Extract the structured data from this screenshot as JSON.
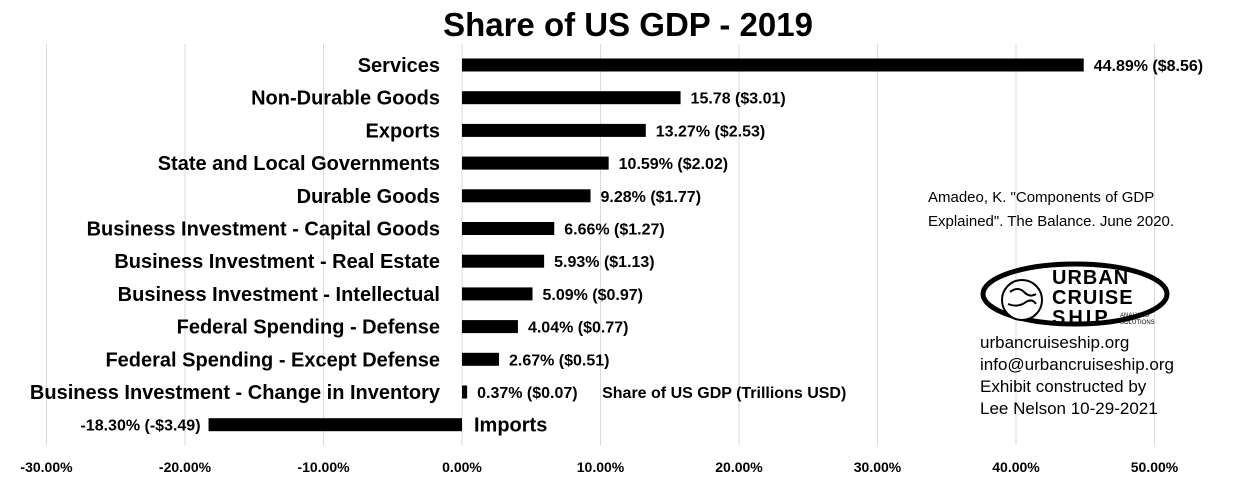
{
  "chart_data": {
    "type": "bar",
    "orientation": "horizontal",
    "title": "Share of US GDP - 2019",
    "series_name": "Share of US GDP (Trillions USD)",
    "categories": [
      "Services",
      "Non-Durable Goods",
      "Exports",
      "State and Local Governments",
      "Durable Goods",
      "Business Investment - Capital Goods",
      "Business Investment - Real Estate",
      "Business Investment - Intellectual",
      "Federal Spending - Defense",
      "Federal Spending - Except Defense",
      "Business Investment - Change in Inventory",
      "Imports"
    ],
    "values": [
      44.89,
      15.78,
      13.27,
      10.59,
      9.28,
      6.66,
      5.93,
      5.09,
      4.04,
      2.67,
      0.37,
      -18.3
    ],
    "data_labels": [
      "44.89% ($8.56)",
      "15.78 ($3.01)",
      "13.27% ($2.53)",
      "10.59% ($2.02)",
      "9.28% ($1.77)",
      "6.66% ($1.27)",
      "5.93% ($1.13)",
      "5.09% ($0.97)",
      "4.04% ($0.77)",
      "2.67% ($0.51)",
      "0.37% ($0.07)",
      "-18.30% (-$3.49)"
    ],
    "xlim": [
      -30,
      50
    ],
    "xticks": [
      -30,
      -20,
      -10,
      0,
      10,
      20,
      30,
      40,
      50
    ],
    "xtick_labels": [
      "-30.00%",
      "-20.00%",
      "-10.00%",
      "0.00%",
      "10.00%",
      "20.00%",
      "30.00%",
      "40.00%",
      "50.00%"
    ],
    "grid": "vertical",
    "bar_color": "#000000",
    "legend": "none"
  },
  "annotations": {
    "source_line1": "Amadeo, K. \"Components of GDP",
    "source_line2": "Explained\". The Balance. June 2020.",
    "contact": [
      "urbancruiseship.org",
      "info@urbancruiseship.org",
      "Exhibit constructed by",
      "Lee Nelson 10-29-2021"
    ]
  },
  "logo": {
    "line1": "URBAN",
    "line2": "CRUISE",
    "line3": "SHIP",
    "tagline1": "ANALYSIS",
    "tagline2": "SOLUTIONS"
  }
}
